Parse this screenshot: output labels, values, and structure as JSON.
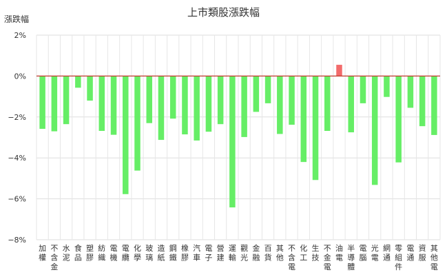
{
  "chart_data": {
    "type": "bar",
    "title": "上市類股漲跌幅",
    "ylabel": "漲跌幅",
    "xlabel": "",
    "ylim": [
      -8,
      2
    ],
    "yticks": [
      2,
      0,
      -2,
      -4,
      -6,
      -8
    ],
    "ytick_labels": [
      "2%",
      "0%",
      "−2%",
      "−4%",
      "−6%",
      "−8%"
    ],
    "grid": true,
    "colors": {
      "positive": "#f26b6b",
      "negative": "#66ee66",
      "zero_line": "#c0392b",
      "grid": "#dddddd"
    },
    "categories": [
      "加權",
      "不含金",
      "水泥",
      "食品",
      "塑膠",
      "紡織",
      "電機",
      "電纜",
      "化學",
      "玻璃",
      "造紙",
      "鋼鐵",
      "橡膠",
      "汽車",
      "電子",
      "營建",
      "運輸",
      "觀光",
      "金融",
      "百貨",
      "其他",
      "不含電",
      "化工",
      "生技",
      "不金電",
      "油電",
      "半導體",
      "電腦",
      "光電",
      "網通",
      "零組件",
      "電通",
      "資服",
      "其他電"
    ],
    "values": [
      -2.58,
      -2.7,
      -2.35,
      -0.57,
      -1.2,
      -2.68,
      -2.87,
      -5.77,
      -4.62,
      -2.3,
      -3.12,
      -2.08,
      -2.85,
      -3.15,
      -2.72,
      -2.35,
      -6.42,
      -2.98,
      -1.75,
      -1.33,
      -2.83,
      -2.38,
      -4.2,
      -5.08,
      -2.68,
      0.55,
      -2.75,
      -1.33,
      -5.32,
      -1.02,
      -4.22,
      -1.55,
      -2.45,
      -2.88
    ]
  }
}
